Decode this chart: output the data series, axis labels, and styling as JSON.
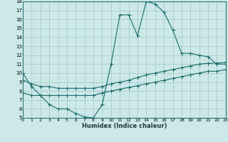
{
  "xlabel": "Humidex (Indice chaleur)",
  "bg_color": "#cce8e8",
  "grid_color": "#aacccc",
  "line_color": "#1a6b6b",
  "xlim": [
    0,
    23
  ],
  "ylim": [
    5,
    18
  ],
  "xticks": [
    0,
    1,
    2,
    3,
    4,
    5,
    6,
    7,
    8,
    9,
    10,
    11,
    12,
    13,
    14,
    15,
    16,
    17,
    18,
    19,
    20,
    21,
    22,
    23
  ],
  "yticks": [
    5,
    6,
    7,
    8,
    9,
    10,
    11,
    12,
    13,
    14,
    15,
    16,
    17,
    18
  ],
  "line1_x": [
    0,
    1,
    2,
    3,
    4,
    5,
    6,
    7,
    8,
    9,
    10,
    11,
    12,
    13,
    14,
    15,
    16,
    17,
    18,
    19,
    20,
    21,
    22,
    23
  ],
  "line1_y": [
    10.0,
    8.5,
    7.5,
    6.5,
    6.0,
    6.0,
    5.5,
    5.1,
    5.0,
    6.5,
    11.0,
    16.5,
    16.5,
    14.2,
    18.0,
    17.7,
    16.8,
    14.8,
    12.2,
    12.2,
    12.0,
    11.8,
    11.0,
    11.0
  ],
  "line2_x": [
    0,
    1,
    2,
    3,
    4,
    5,
    6,
    7,
    8,
    9,
    10,
    11,
    12,
    13,
    14,
    15,
    16,
    17,
    18,
    19,
    20,
    21,
    22,
    23
  ],
  "line2_y": [
    9.2,
    8.8,
    8.5,
    8.5,
    8.3,
    8.3,
    8.3,
    8.3,
    8.3,
    8.5,
    8.8,
    9.0,
    9.2,
    9.5,
    9.8,
    10.0,
    10.2,
    10.4,
    10.6,
    10.8,
    11.0,
    11.1,
    11.1,
    11.2
  ],
  "line3_x": [
    0,
    1,
    2,
    3,
    4,
    5,
    6,
    7,
    8,
    9,
    10,
    11,
    12,
    13,
    14,
    15,
    16,
    17,
    18,
    19,
    20,
    21,
    22,
    23
  ],
  "line3_y": [
    7.8,
    7.5,
    7.5,
    7.5,
    7.5,
    7.5,
    7.5,
    7.5,
    7.5,
    7.8,
    8.0,
    8.2,
    8.4,
    8.6,
    8.8,
    9.0,
    9.2,
    9.4,
    9.6,
    9.8,
    10.0,
    10.2,
    10.2,
    10.4
  ]
}
